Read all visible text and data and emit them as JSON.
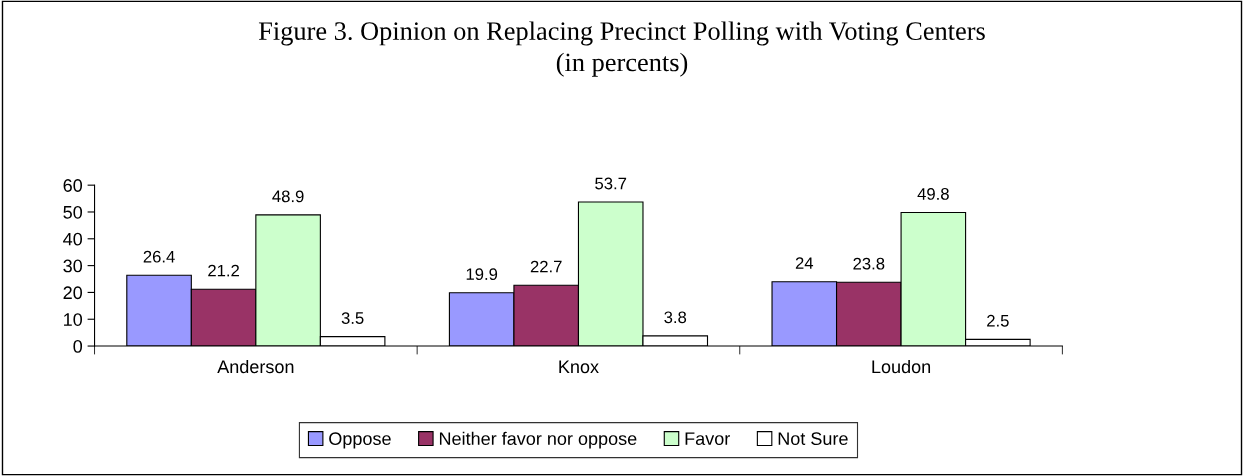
{
  "chart_data": {
    "type": "bar",
    "title": "Figure 3. Opinion on Replacing Precinct Polling with Voting Centers\n(in percents)",
    "categories": [
      "Anderson",
      "Knox",
      "Loudon"
    ],
    "series": [
      {
        "name": "Oppose",
        "color": "#9999ff",
        "values": [
          26.4,
          19.9,
          24
        ]
      },
      {
        "name": "Neither favor nor oppose",
        "color": "#993366",
        "values": [
          21.2,
          22.7,
          23.8
        ]
      },
      {
        "name": "Favor",
        "color": "#ccffcc",
        "values": [
          48.9,
          53.7,
          49.8
        ]
      },
      {
        "name": "Not Sure",
        "color": "#ffffff",
        "values": [
          3.5,
          3.8,
          2.5
        ]
      }
    ],
    "ylim": [
      0,
      60
    ],
    "yticks": [
      0,
      10,
      20,
      30,
      40,
      50,
      60
    ],
    "grid": false,
    "legend": "bottom",
    "data_labels": true
  }
}
